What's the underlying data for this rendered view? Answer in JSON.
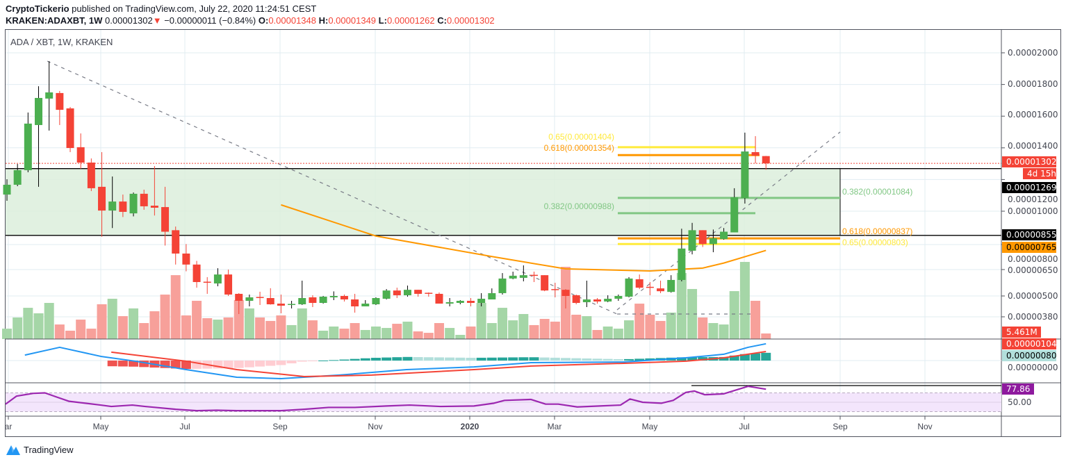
{
  "header": {
    "author": "CryptoTickerio",
    "published": " published on TradingView.com, July 22, 2020 11:24:51 CEST",
    "symbol": "KRAKEN:ADAXBT, 1W",
    "last": "0.00001302",
    "arrow": "▼",
    "change": "−0.00000011 (−0.84%)",
    "o_label": "O:",
    "o": "0.00001348",
    "h_label": "H:",
    "h": "0.00001349",
    "l_label": "L:",
    "l": "0.00001262",
    "c_label": "C:",
    "c": "0.00001302"
  },
  "legend": "ADA / XBT, 1W, KRAKEN",
  "colors": {
    "up": "#4caf50",
    "down": "#f44336",
    "ma": "#ff9800",
    "macd": "#2196f3",
    "signal": "#f44336",
    "rsi": "#9c27b0",
    "zone": "#dcefdc"
  },
  "price_axis": {
    "ticks": [
      "0.00002000",
      "0.00001800",
      "0.00001600",
      "0.00001400",
      "0.00001200",
      "0.00001000",
      "0.00000800",
      "0.00000650",
      "0.00000500",
      "0.00000380"
    ],
    "last_price_tag": "0.00001302",
    "countdown_tag": "4d 15h",
    "zone_top_tag": "0.00001269",
    "zone_bottom_tag": "0.00000855",
    "ma_tag": "0.00000765",
    "volume_tag": "5.461M",
    "macd_tag": "0.00000104",
    "hist_tag": "0.00000080",
    "macd_zero_tick": "0.00000000",
    "rsi_tag": "77.86",
    "rsi_tick": "50.00"
  },
  "time_axis": [
    "ar",
    "May",
    "Jul",
    "Sep",
    "Nov",
    "2020",
    "Mar",
    "May",
    "Jul",
    "Sep",
    "Nov"
  ],
  "fib_labels": {
    "left_065": "0.65(0.00001404)",
    "left_0618": "0.618(0.00001354)",
    "left_0382": "0.382(0.00000988)",
    "right_0382": "0.382(0.00001084)",
    "right_0618": "0.618(0.00000837)",
    "right_065": "0.65(0.00000803)"
  },
  "footer": {
    "brand": "TradingView"
  },
  "chart_data": {
    "type": "candlestick",
    "title": "ADA / XBT, 1W, KRAKEN",
    "price_unit": 1e-08,
    "interval": "1W",
    "xlabel": "",
    "ylabel": "",
    "ylim": [
      380,
      2000
    ],
    "price_ticks": [
      2000,
      1800,
      1600,
      1400,
      1200,
      1000,
      800,
      650,
      500,
      380
    ],
    "ohlc": [
      [
        1105,
        1202,
        1066,
        1167
      ],
      [
        1167,
        1298,
        1158,
        1259
      ],
      [
        1259,
        1623,
        1246,
        1553
      ],
      [
        1544,
        1789,
        1154,
        1715
      ],
      [
        1711,
        1947,
        1509,
        1750
      ],
      [
        1746,
        1759,
        1544,
        1640
      ],
      [
        1649,
        1658,
        1373,
        1399
      ],
      [
        1404,
        1491,
        1268,
        1307
      ],
      [
        1307,
        1333,
        1127,
        1145
      ],
      [
        1154,
        1373,
        847,
        1004
      ],
      [
        1004,
        1219,
        899,
        1061
      ],
      [
        1061,
        1105,
        965,
        996
      ],
      [
        987,
        1118,
        969,
        1110
      ],
      [
        1110,
        1136,
        1009,
        1031
      ],
      [
        1035,
        1285,
        974,
        1022
      ],
      [
        1026,
        1154,
        794,
        877
      ],
      [
        886,
        908,
        680,
        746
      ],
      [
        746,
        803,
        640,
        680
      ],
      [
        680,
        702,
        547,
        579
      ],
      [
        581,
        607,
        512,
        579
      ],
      [
        571,
        658,
        555,
        622
      ],
      [
        622,
        650,
        500,
        508
      ],
      [
        512,
        516,
        396,
        472
      ],
      [
        472,
        508,
        440,
        492
      ],
      [
        494,
        524,
        448,
        490
      ],
      [
        488,
        544,
        450,
        452
      ],
      [
        456,
        508,
        400,
        444
      ],
      [
        450,
        472,
        428,
        454
      ],
      [
        452,
        587,
        448,
        488
      ],
      [
        492,
        504,
        436,
        460
      ],
      [
        460,
        500,
        456,
        496
      ],
      [
        492,
        526,
        476,
        500
      ],
      [
        500,
        508,
        468,
        480
      ],
      [
        480,
        512,
        404,
        440
      ],
      [
        440,
        476,
        440,
        456
      ],
      [
        452,
        492,
        448,
        488
      ],
      [
        484,
        539,
        480,
        531
      ],
      [
        531,
        547,
        488,
        504
      ],
      [
        504,
        559,
        496,
        535
      ],
      [
        535,
        535,
        496,
        512
      ],
      [
        518,
        520,
        496,
        516
      ],
      [
        512,
        520,
        456,
        456
      ],
      [
        456,
        488,
        440,
        464
      ],
      [
        460,
        476,
        452,
        472
      ],
      [
        472,
        488,
        440,
        460
      ],
      [
        460,
        516,
        440,
        484
      ],
      [
        480,
        543,
        480,
        516
      ],
      [
        516,
        630,
        508,
        599
      ],
      [
        599,
        638,
        595,
        615
      ],
      [
        603,
        675,
        583,
        618
      ],
      [
        620,
        638,
        579,
        618
      ],
      [
        618,
        618,
        527,
        531
      ],
      [
        539,
        575,
        492,
        535
      ],
      [
        535,
        539,
        428,
        500
      ],
      [
        504,
        508,
        452,
        460
      ],
      [
        464,
        587,
        436,
        480
      ],
      [
        480,
        488,
        456,
        468
      ],
      [
        468,
        504,
        464,
        484
      ],
      [
        484,
        508,
        472,
        500
      ],
      [
        496,
        607,
        492,
        599
      ],
      [
        595,
        622,
        539,
        547
      ],
      [
        552,
        579,
        504,
        550
      ],
      [
        543,
        587,
        516,
        527
      ],
      [
        523,
        618,
        519,
        591
      ],
      [
        591,
        895,
        583,
        776
      ],
      [
        763,
        930,
        741,
        886
      ],
      [
        886,
        886,
        785,
        803
      ],
      [
        803,
        890,
        754,
        838
      ],
      [
        833,
        899,
        829,
        877
      ],
      [
        873,
        1145,
        873,
        1088
      ],
      [
        1083,
        1496,
        1048,
        1377
      ],
      [
        1373,
        1474,
        1302,
        1351
      ],
      [
        1348,
        1349,
        1262,
        1302
      ]
    ],
    "volume_millions": [
      10.2,
      21.2,
      30.7,
      25.3,
      35.5,
      14.3,
      8.2,
      19.1,
      10.2,
      34.2,
      39.6,
      22.5,
      30.1,
      15.7,
      27.3,
      43.7,
      62.8,
      23.2,
      37.6,
      20.5,
      19.1,
      21.2,
      38.2,
      30.1,
      21.2,
      17.8,
      23.2,
      13.7,
      30.1,
      18.4,
      8.2,
      12.3,
      10.2,
      15.7,
      8.9,
      12.3,
      10.9,
      15.0,
      17.1,
      7.5,
      6.1,
      15.7,
      10.9,
      4.1,
      12.3,
      35.5,
      15.7,
      30.7,
      18.4,
      24.6,
      13.7,
      19.8,
      17.1,
      71.0,
      23.9,
      22.5,
      8.9,
      12.3,
      10.2,
      18.4,
      34.8,
      23.9,
      17.8,
      26.0,
      64.9,
      49.2,
      21.2,
      15.7,
      14.3,
      47.1,
      75.8,
      37.6,
      5.461
    ],
    "moving_average": [
      [
        26,
        1040
      ],
      [
        35,
        851
      ],
      [
        46,
        728
      ],
      [
        53,
        654
      ],
      [
        61,
        642
      ],
      [
        66,
        659
      ],
      [
        68,
        689
      ],
      [
        72,
        765
      ]
    ],
    "zone": {
      "top": 1269,
      "bottom": 855
    },
    "fib_levels": [
      {
        "ratio": "0.65",
        "value": 1404,
        "color": "#ffeb3b"
      },
      {
        "ratio": "0.618",
        "value": 1354,
        "color": "#ff9800"
      },
      {
        "ratio": "0.382",
        "value": 988,
        "color": "#81c784"
      },
      {
        "ratio": "0.382",
        "value": 1084,
        "color": "#81c784"
      },
      {
        "ratio": "0.618",
        "value": 837,
        "color": "#ff9800"
      },
      {
        "ratio": "0.65",
        "value": 803,
        "color": "#ffeb3b"
      }
    ],
    "macd": {
      "macd_line": [
        [
          1.7,
          34
        ],
        [
          5,
          82
        ],
        [
          8.9,
          26
        ],
        [
          12.2,
          -4
        ],
        [
          17,
          -56
        ],
        [
          21.8,
          -103
        ],
        [
          26,
          -112
        ],
        [
          31.5,
          -90
        ],
        [
          37.9,
          -56
        ],
        [
          44.3,
          -39
        ],
        [
          49.7,
          -13
        ],
        [
          58.5,
          -9
        ],
        [
          64.4,
          17
        ],
        [
          68,
          39
        ],
        [
          70.3,
          82
        ],
        [
          72,
          104
        ]
      ],
      "signal_line": [
        [
          9.9,
          52
        ],
        [
          17,
          -4
        ],
        [
          21.8,
          -56
        ],
        [
          28.2,
          -99
        ],
        [
          34.6,
          -90
        ],
        [
          44.3,
          -56
        ],
        [
          49.7,
          -34
        ],
        [
          58.5,
          -17
        ],
        [
          64.4,
          -4
        ],
        [
          68,
          17
        ],
        [
          72,
          56
        ]
      ]
    },
    "rsi": {
      "upper": 70,
      "lower": 30,
      "values": [
        [
          -0.2,
          46
        ],
        [
          0.9,
          63
        ],
        [
          2.5,
          69
        ],
        [
          3.6,
          70
        ],
        [
          4.6,
          62
        ],
        [
          5.9,
          52
        ],
        [
          8.9,
          44
        ],
        [
          9.9,
          41
        ],
        [
          11.9,
          44
        ],
        [
          13.1,
          41
        ],
        [
          14.1,
          39
        ],
        [
          16,
          35
        ],
        [
          18,
          32
        ],
        [
          19.9,
          33
        ],
        [
          21.8,
          32
        ],
        [
          26,
          32
        ],
        [
          28.2,
          35
        ],
        [
          30.5,
          39
        ],
        [
          33,
          39
        ],
        [
          36,
          42
        ],
        [
          38.2,
          44
        ],
        [
          41.1,
          41
        ],
        [
          44.3,
          42
        ],
        [
          46.2,
          48
        ],
        [
          47.2,
          54
        ],
        [
          49.7,
          56
        ],
        [
          51.1,
          46
        ],
        [
          52.3,
          46
        ],
        [
          54.1,
          40
        ],
        [
          56.2,
          42
        ],
        [
          58.2,
          44
        ],
        [
          59.1,
          57
        ],
        [
          60.3,
          50
        ],
        [
          62.1,
          48
        ],
        [
          63.2,
          54
        ],
        [
          64.4,
          71
        ],
        [
          65.2,
          74
        ],
        [
          66.2,
          66
        ],
        [
          68,
          68
        ],
        [
          70.3,
          84
        ],
        [
          72,
          77.86
        ]
      ]
    }
  }
}
